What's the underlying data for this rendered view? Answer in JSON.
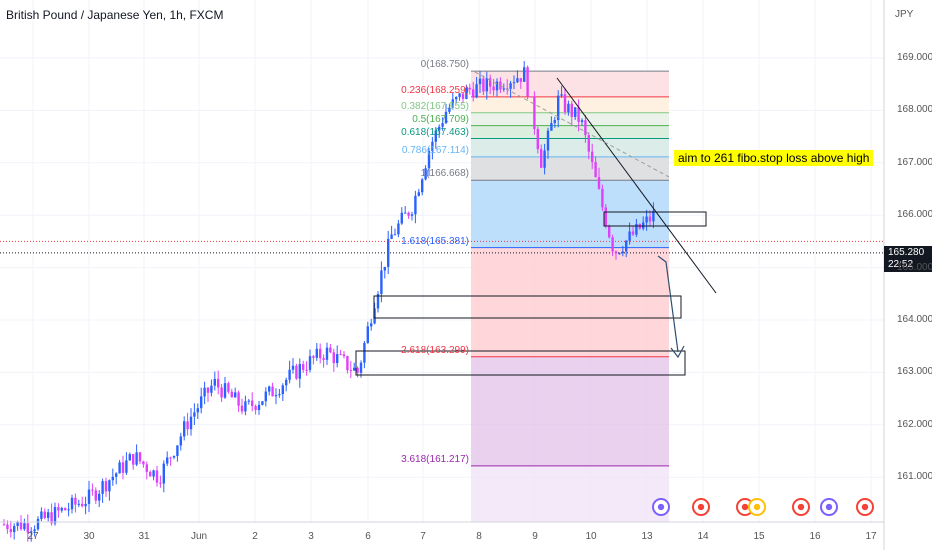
{
  "header": {
    "title": "British Pound / Japanese Yen, 1h, FXCM",
    "currency": "JPY"
  },
  "price_tag": {
    "price": "165.280",
    "countdown": "22:52"
  },
  "annotation": {
    "text": "aim to 261 fibo.stop loss above high"
  },
  "colors": {
    "bull": "#2962ff",
    "bear": "#e040fb",
    "fib_zone_blue": "#bbdefb",
    "fib_zone_red": "#ffcdd2",
    "fib_zone_purple": "#e1bee7"
  },
  "chart_data": {
    "type": "candlestick",
    "title": "British Pound / Japanese Yen, 1h, FXCM",
    "y_unit": "JPY",
    "ylim": [
      160.0,
      169.9
    ],
    "y_ticks": [
      161.0,
      162.0,
      163.0,
      164.0,
      165.0,
      166.0,
      167.0,
      168.0,
      169.0
    ],
    "x_ticks": [
      "27",
      "30",
      "31",
      "Jun",
      "2",
      "3",
      "6",
      "7",
      "8",
      "9",
      "10",
      "13",
      "14",
      "15",
      "16",
      "17"
    ],
    "last_price": 165.28,
    "price_path": [
      [
        "27",
        160.1
      ],
      [
        "30",
        160.6
      ],
      [
        "31",
        161.4
      ],
      [
        "31",
        161.0
      ],
      [
        "Jun",
        162.1
      ],
      [
        "Jun",
        162.8
      ],
      [
        "2",
        162.3
      ],
      [
        "2",
        162.6
      ],
      [
        "3",
        163.1
      ],
      [
        "3",
        163.4
      ],
      [
        "6",
        163.0
      ],
      [
        "6",
        164.4
      ],
      [
        "6",
        165.6
      ],
      [
        "7",
        166.2
      ],
      [
        "7",
        167.3
      ],
      [
        "7",
        168.0
      ],
      [
        "8",
        168.4
      ],
      [
        "8",
        168.5
      ],
      [
        "9",
        168.7
      ],
      [
        "9",
        167.0
      ],
      [
        "9",
        168.2
      ],
      [
        "10",
        167.8
      ],
      [
        "10",
        166.5
      ],
      [
        "10",
        165.3
      ],
      [
        "13",
        165.7
      ],
      [
        "13",
        166.0
      ],
      [
        "13",
        165.28
      ]
    ],
    "fibonacci": {
      "levels": [
        {
          "ratio": "0",
          "price": "168.750",
          "color": "#787b86"
        },
        {
          "ratio": "0.236",
          "price": "168.259",
          "color": "#f23645"
        },
        {
          "ratio": "0.382",
          "price": "167.955",
          "color": "#81c784"
        },
        {
          "ratio": "0.5",
          "price": "167.709",
          "color": "#4caf50"
        },
        {
          "ratio": "0.618",
          "price": "167.463",
          "color": "#089981"
        },
        {
          "ratio": "0.786",
          "price": "167.114",
          "color": "#64b5f6"
        },
        {
          "ratio": "1",
          "price": "166.668",
          "color": "#787b86"
        },
        {
          "ratio": "1.618",
          "price": "165.381",
          "color": "#2962ff"
        },
        {
          "ratio": "2.618",
          "price": "163.299",
          "color": "#f23645"
        },
        {
          "ratio": "3.618",
          "price": "161.217",
          "color": "#9c27b0"
        }
      ]
    }
  }
}
